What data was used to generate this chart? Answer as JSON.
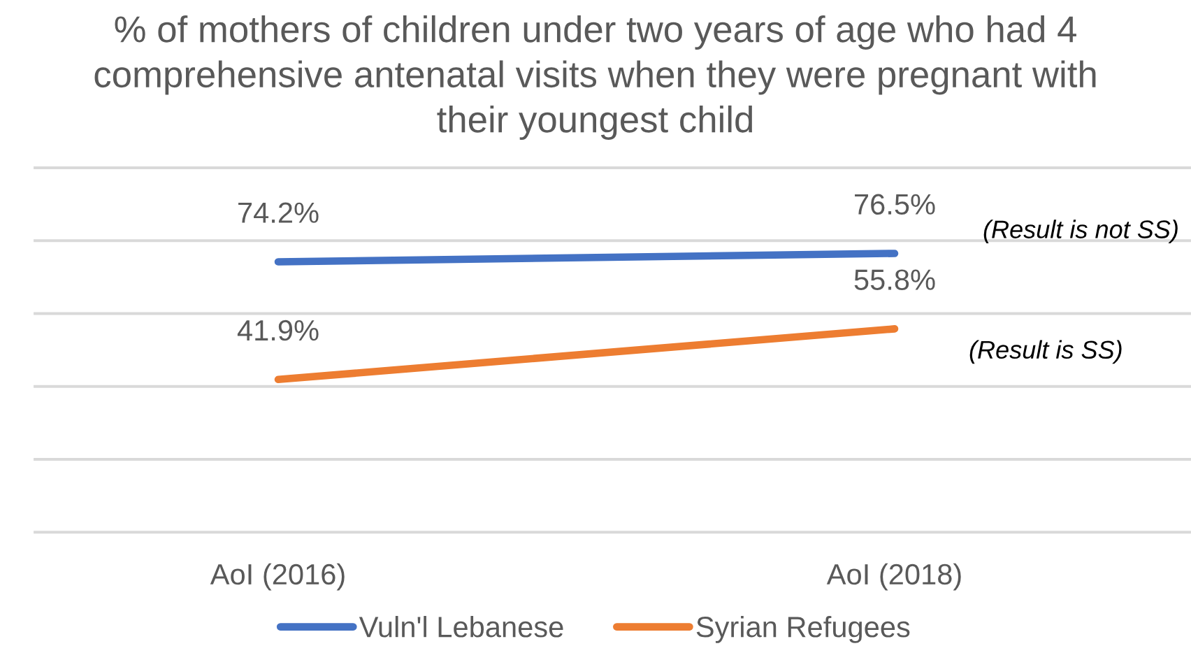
{
  "chart_data": {
    "type": "line",
    "title": "% of mothers of children under two years of age who had 4\ncomprehensive antenatal visits when they were pregnant with\ntheir youngest child",
    "categories": [
      "AoI (2016)",
      "AoI (2018)"
    ],
    "series": [
      {
        "name": "Vuln'l Lebanese",
        "color": "#4472c4",
        "values": [
          74.2,
          76.5
        ],
        "value_labels": [
          "74.2%",
          "76.5%"
        ]
      },
      {
        "name": "Syrian Refugees",
        "color": "#ed7d31",
        "values": [
          41.9,
          55.8
        ],
        "value_labels": [
          "41.9%",
          "55.8%"
        ]
      }
    ],
    "ylim": [
      0,
      100
    ],
    "yticks": [
      {
        "value": 0,
        "label": null
      },
      {
        "value": 20,
        "label": null
      },
      {
        "value": 40,
        "label": null
      },
      {
        "value": 60,
        "label": null
      },
      {
        "value": 80,
        "label": null
      },
      {
        "value": 100,
        "label": null
      }
    ],
    "tick_labels": "x",
    "grid": "y",
    "legend": "bottom",
    "line_style": "solid",
    "marker": "none",
    "annotations": [
      "(Result is not SS)",
      "(Result is SS)"
    ]
  }
}
